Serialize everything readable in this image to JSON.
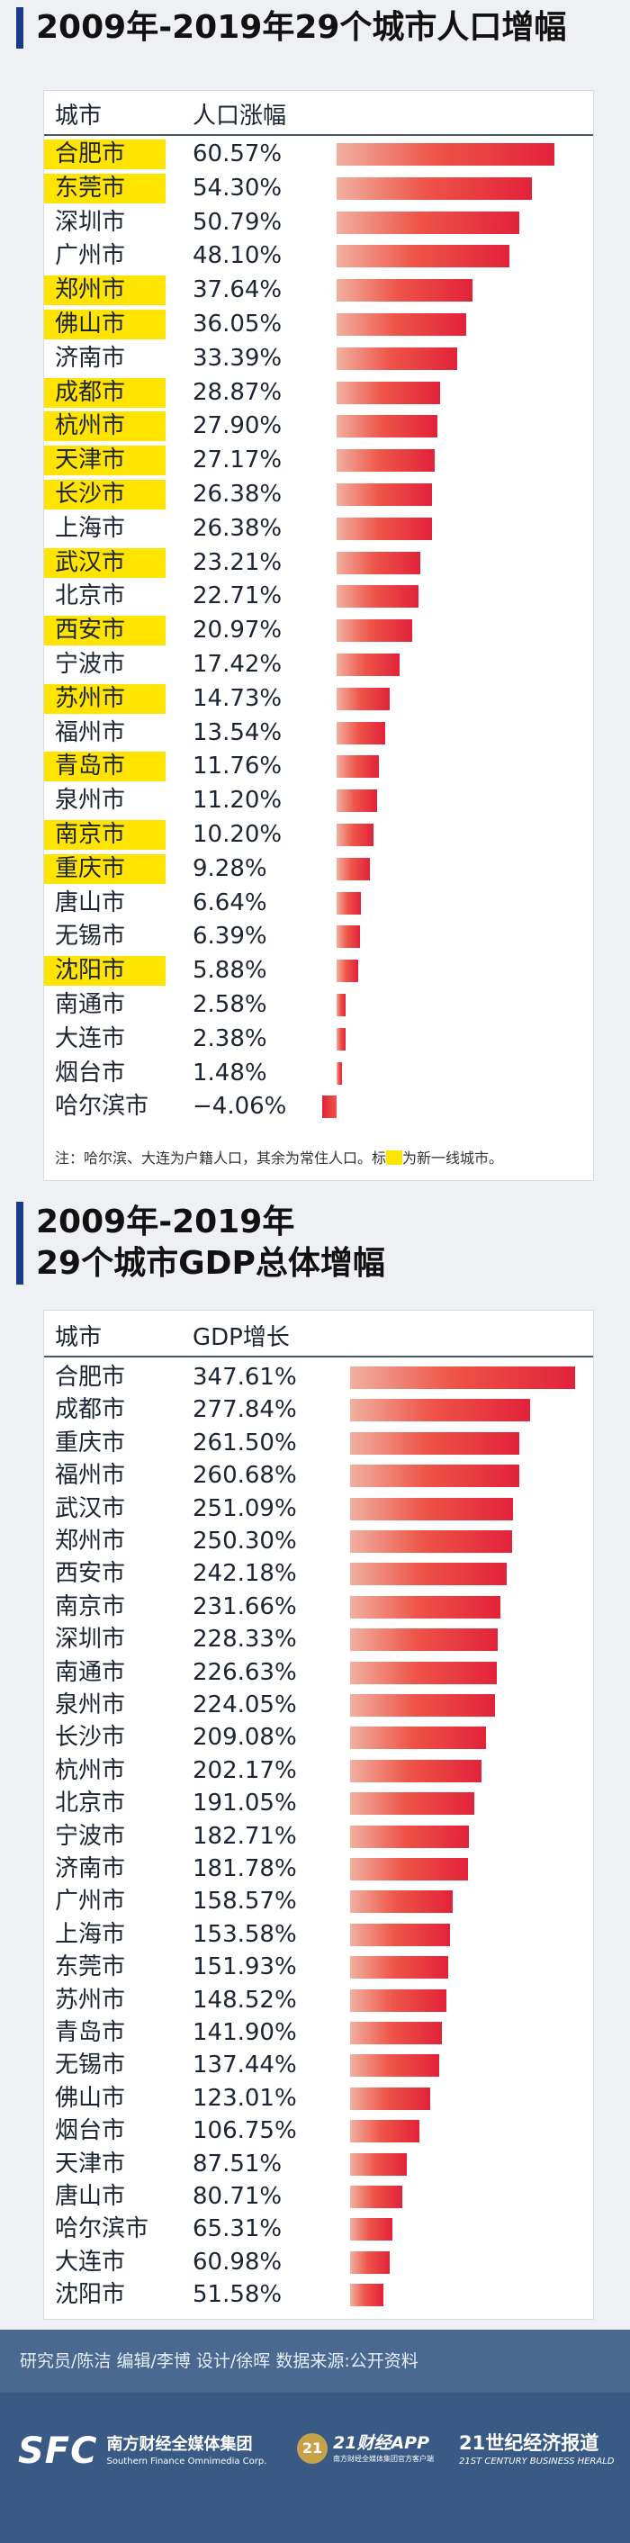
{
  "section1": {
    "title": "2009年-2019年29个城市人口增幅",
    "col_city": "城市",
    "col_value": "人口涨幅",
    "note_before": "注：哈尔滨、大连为户籍人口，其余为常住人口。标",
    "note_after": "为新一线城市。",
    "highlight_color": "#ffe400"
  },
  "section2": {
    "title_line1": "2009年-2019年",
    "title_line2": "29个城市GDP总体增幅",
    "col_city": "城市",
    "col_value": "GDP增长"
  },
  "footer": {
    "credits": "研究员/陈洁  编辑/李博  设计/徐晖   数据来源:公开资料",
    "sfc_logo": "SFC",
    "sfc_name_cn": "南方财经全媒体集团",
    "sfc_name_en": "Southern Finance Omnimedia Corp.",
    "app_badge": "21",
    "app_name": "21财经APP",
    "app_tagline": "南方财经全媒体集团官方客户端",
    "herald_cn": "21世纪经济报道",
    "herald_en": "21ST CENTURY BUSINESS HERALD"
  },
  "chart_data": [
    {
      "type": "bar",
      "orientation": "horizontal",
      "title": "2009年-2019年29个城市人口增幅",
      "unit": "%",
      "categories": [
        "合肥市",
        "东莞市",
        "深圳市",
        "广州市",
        "郑州市",
        "佛山市",
        "济南市",
        "成都市",
        "杭州市",
        "天津市",
        "长沙市",
        "上海市",
        "武汉市",
        "北京市",
        "西安市",
        "宁波市",
        "苏州市",
        "福州市",
        "青岛市",
        "泉州市",
        "南京市",
        "重庆市",
        "唐山市",
        "无锡市",
        "沈阳市",
        "南通市",
        "大连市",
        "烟台市",
        "哈尔滨市"
      ],
      "values": [
        60.57,
        54.3,
        50.79,
        48.1,
        37.64,
        36.05,
        33.39,
        28.87,
        27.9,
        27.17,
        26.38,
        26.38,
        23.21,
        22.71,
        20.97,
        17.42,
        14.73,
        13.54,
        11.76,
        11.2,
        10.2,
        9.28,
        6.64,
        6.39,
        5.88,
        2.58,
        2.38,
        1.48,
        -4.06
      ],
      "labels": [
        "60.57%",
        "54.30%",
        "50.79%",
        "48.10%",
        "37.64%",
        "36.05%",
        "33.39%",
        "28.87%",
        "27.90%",
        "27.17%",
        "26.38%",
        "26.38%",
        "23.21%",
        "22.71%",
        "20.97%",
        "17.42%",
        "14.73%",
        "13.54%",
        "11.76%",
        "11.20%",
        "10.20%",
        "9.28%",
        "6.64%",
        "6.39%",
        "5.88%",
        "2.58%",
        "2.38%",
        "1.48%",
        "−4.06%"
      ],
      "highlighted": [
        "合肥市",
        "东莞市",
        "郑州市",
        "佛山市",
        "成都市",
        "杭州市",
        "天津市",
        "长沙市",
        "武汉市",
        "西安市",
        "苏州市",
        "青岛市",
        "南京市",
        "重庆市",
        "沈阳市"
      ]
    },
    {
      "type": "bar",
      "orientation": "horizontal",
      "title": "2009年-2019年29个城市GDP总体增幅",
      "unit": "%",
      "categories": [
        "合肥市",
        "成都市",
        "重庆市",
        "福州市",
        "武汉市",
        "郑州市",
        "西安市",
        "南京市",
        "深圳市",
        "南通市",
        "泉州市",
        "长沙市",
        "杭州市",
        "北京市",
        "宁波市",
        "济南市",
        "广州市",
        "上海市",
        "东莞市",
        "苏州市",
        "青岛市",
        "无锡市",
        "佛山市",
        "烟台市",
        "天津市",
        "唐山市",
        "哈尔滨市",
        "大连市",
        "沈阳市"
      ],
      "values": [
        347.61,
        277.84,
        261.5,
        260.68,
        251.09,
        250.3,
        242.18,
        231.66,
        228.33,
        226.63,
        224.05,
        209.08,
        202.17,
        191.05,
        182.71,
        181.78,
        158.57,
        153.58,
        151.93,
        148.52,
        141.9,
        137.44,
        123.01,
        106.75,
        87.51,
        80.71,
        65.31,
        60.98,
        51.58
      ],
      "labels": [
        "347.61%",
        "277.84%",
        "261.50%",
        "260.68%",
        "251.09%",
        "250.30%",
        "242.18%",
        "231.66%",
        "228.33%",
        "226.63%",
        "224.05%",
        "209.08%",
        "202.17%",
        "191.05%",
        "182.71%",
        "181.78%",
        "158.57%",
        "153.58%",
        "151.93%",
        "148.52%",
        "141.90%",
        "137.44%",
        "123.01%",
        "106.75%",
        "87.51%",
        "80.71%",
        "65.31%",
        "60.98%",
        "51.58%"
      ]
    }
  ]
}
